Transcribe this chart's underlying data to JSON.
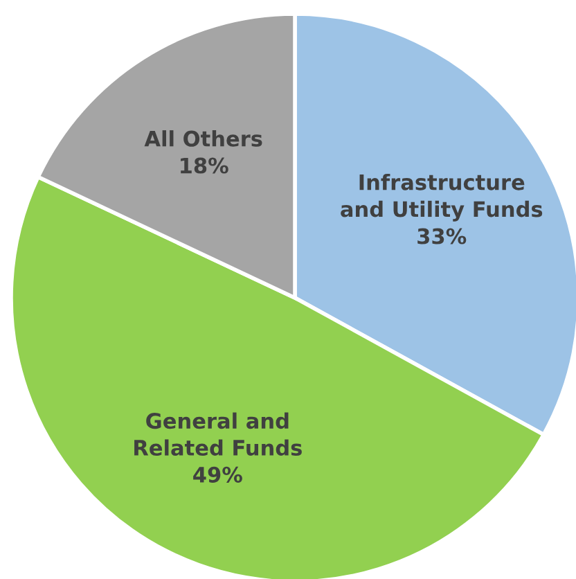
{
  "chart_data": {
    "type": "pie",
    "categories": [
      "Infrastructure\nand Utility Funds",
      "General and\nRelated Funds",
      "All Others"
    ],
    "values": [
      33,
      49,
      18
    ],
    "value_labels": [
      "33%",
      "49%",
      "18%"
    ],
    "colors": [
      "#9dc3e6",
      "#92d050",
      "#a5a5a5"
    ]
  }
}
